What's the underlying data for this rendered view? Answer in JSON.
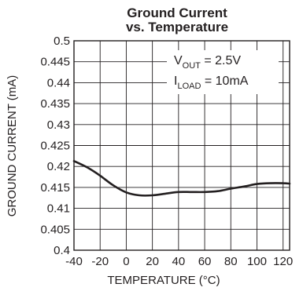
{
  "chart_data": {
    "type": "line",
    "title": "Ground Current",
    "subtitle": "vs. Temperature",
    "xlabel": "TEMPERATURE (°C)",
    "ylabel": "GROUND CURRENT (mA)",
    "xlim": [
      -40,
      125
    ],
    "ylim": [
      0.4,
      0.5
    ],
    "x_ticks": [
      "-40",
      "-20",
      "0",
      "20",
      "40",
      "60",
      "80",
      "100",
      "120"
    ],
    "y_ticks": [
      "0.4",
      "0.405",
      "0.41",
      "0.415",
      "0.42",
      "0.425",
      "0.43",
      "0.435",
      "0.44",
      "0.445",
      "0.5"
    ],
    "grid": true,
    "annotation": {
      "line1_main": "V",
      "line1_sub": "OUT",
      "line1_rest": " = 2.5V",
      "line2_main": "I",
      "line2_sub": "LOAD",
      "line2_rest": " = 10mA"
    },
    "series": [
      {
        "x": [
          -40,
          -30,
          -20,
          -10,
          0,
          10,
          20,
          30,
          40,
          50,
          60,
          70,
          80,
          90,
          100,
          110,
          120,
          125
        ],
        "y": [
          0.4213,
          0.4198,
          0.4178,
          0.4155,
          0.4138,
          0.4131,
          0.4131,
          0.4135,
          0.4139,
          0.4139,
          0.4139,
          0.4141,
          0.4147,
          0.4152,
          0.4158,
          0.416,
          0.416,
          0.4159
        ]
      }
    ]
  },
  "colors": {
    "line": "#231f20",
    "grid": "#231f20",
    "background": "#ffffff"
  }
}
